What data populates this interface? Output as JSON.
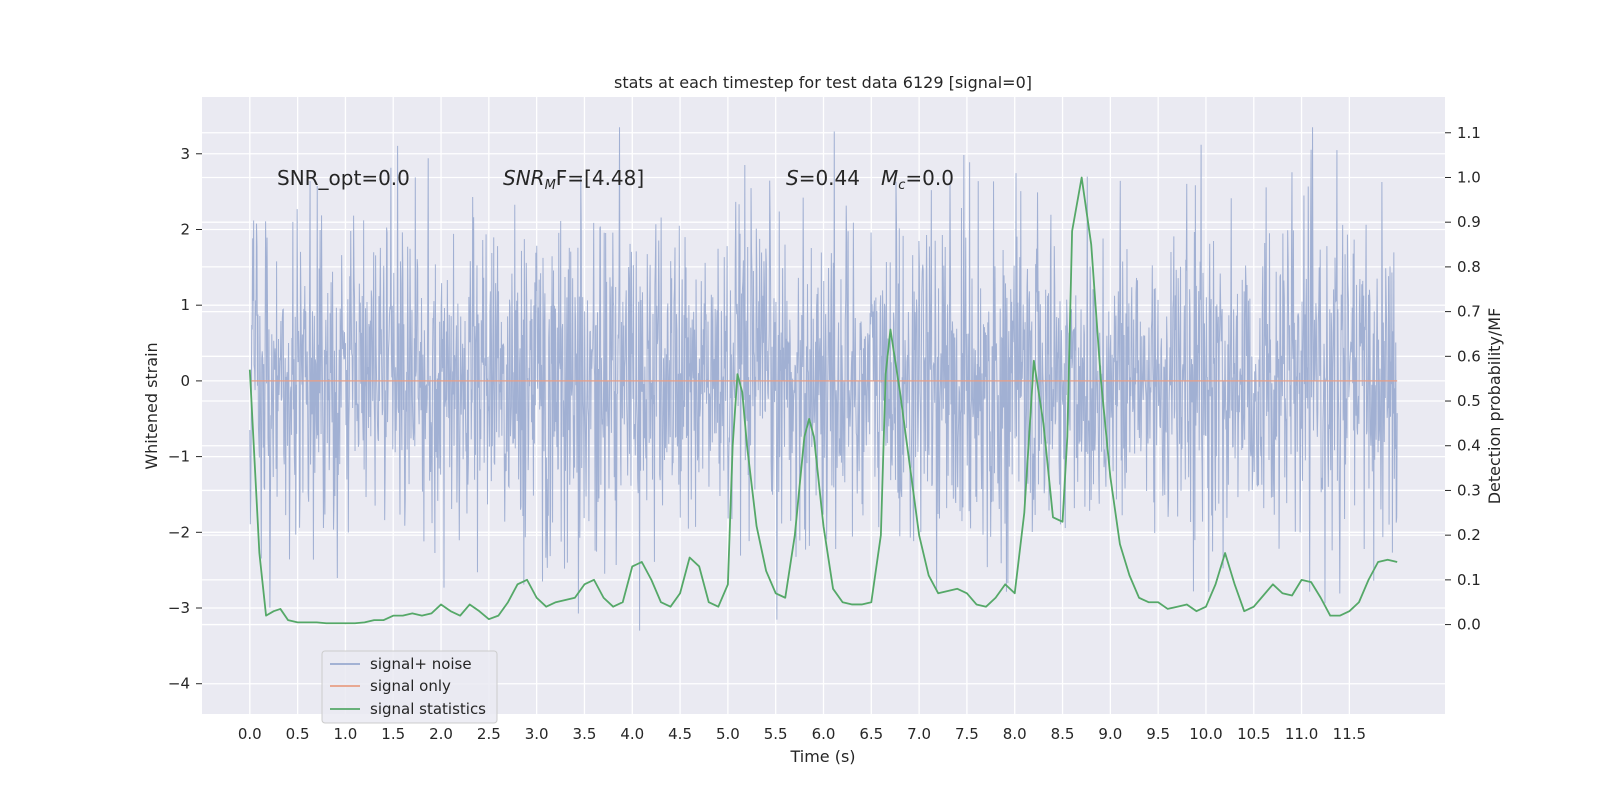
{
  "chart_data": {
    "type": "line",
    "title": "stats at each timestep for test data 6129 [signal=0]",
    "xlabel": "Time (s)",
    "ylabel": "Whitened strain",
    "y2label": "Detection probability/MF",
    "xlim": [
      -0.5,
      12.5
    ],
    "ylim": [
      -4.4,
      3.75
    ],
    "y2lim": [
      -0.2,
      1.18
    ],
    "x_ticks": [
      "0.0",
      "0.5",
      "1.0",
      "1.5",
      "2.0",
      "2.5",
      "3.0",
      "3.5",
      "4.0",
      "4.5",
      "5.0",
      "5.5",
      "6.0",
      "6.5",
      "7.0",
      "7.5",
      "8.0",
      "8.5",
      "9.0",
      "9.5",
      "10.0",
      "10.5",
      "11.0",
      "11.5"
    ],
    "y_ticks": [
      "3",
      "2",
      "1",
      "0",
      "−1",
      "−2",
      "−3",
      "−4"
    ],
    "y2_ticks": [
      "1.1",
      "1.0",
      "0.9",
      "0.8",
      "0.7",
      "0.6",
      "0.5",
      "0.4",
      "0.3",
      "0.2",
      "0.1",
      "0.0"
    ],
    "grid": true,
    "legend_placement": "lower-left",
    "annotations": {
      "snr_opt": "SNR_opt=0.0",
      "snr_mf_italic": "SNR",
      "snr_mf_sub": "M",
      "snr_mf_rest": "F=[4.48]",
      "s_italic": "S",
      "s_rest": "=0.44",
      "mc_italic": "M",
      "mc_sub": "c",
      "mc_rest": "=0.0"
    },
    "series": [
      {
        "name": "signal+ noise",
        "color": "#99aacf",
        "description_values": "dense whitened noise in [-3.7, 3.4], mostly within [-2.5, 2.5]",
        "x_range": [
          0.0,
          12.0
        ],
        "y_range": [
          -3.75,
          3.35
        ]
      },
      {
        "name": "signal only",
        "color": "#e79e85",
        "x": [
          0.0,
          12.0
        ],
        "y": [
          0.0,
          0.0
        ]
      },
      {
        "name": "signal statistics",
        "color": "#55a868",
        "axis": "right",
        "x": [
          0.0,
          0.1,
          0.17,
          0.25,
          0.32,
          0.4,
          0.5,
          0.6,
          0.7,
          0.8,
          0.9,
          1.0,
          1.1,
          1.2,
          1.3,
          1.4,
          1.5,
          1.6,
          1.7,
          1.8,
          1.9,
          2.0,
          2.1,
          2.2,
          2.3,
          2.4,
          2.5,
          2.6,
          2.7,
          2.8,
          2.9,
          3.0,
          3.1,
          3.2,
          3.3,
          3.4,
          3.5,
          3.6,
          3.7,
          3.8,
          3.9,
          4.0,
          4.1,
          4.2,
          4.3,
          4.4,
          4.5,
          4.6,
          4.7,
          4.8,
          4.9,
          5.0,
          5.05,
          5.1,
          5.15,
          5.2,
          5.3,
          5.4,
          5.5,
          5.6,
          5.7,
          5.8,
          5.85,
          5.9,
          6.0,
          6.1,
          6.2,
          6.3,
          6.4,
          6.5,
          6.6,
          6.65,
          6.7,
          6.8,
          6.9,
          7.0,
          7.1,
          7.2,
          7.3,
          7.4,
          7.5,
          7.6,
          7.7,
          7.8,
          7.9,
          8.0,
          8.1,
          8.2,
          8.3,
          8.4,
          8.5,
          8.55,
          8.6,
          8.7,
          8.8,
          8.9,
          9.0,
          9.1,
          9.2,
          9.3,
          9.4,
          9.5,
          9.6,
          9.7,
          9.8,
          9.9,
          10.0,
          10.1,
          10.2,
          10.3,
          10.4,
          10.5,
          10.6,
          10.7,
          10.8,
          10.9,
          11.0,
          11.1,
          11.2,
          11.3,
          11.4,
          11.5,
          11.6,
          11.7,
          11.8,
          11.9,
          12.0
        ],
        "y": [
          0.57,
          0.16,
          0.02,
          0.03,
          0.035,
          0.01,
          0.005,
          0.005,
          0.005,
          0.003,
          0.003,
          0.003,
          0.003,
          0.005,
          0.01,
          0.01,
          0.02,
          0.02,
          0.025,
          0.02,
          0.025,
          0.045,
          0.03,
          0.02,
          0.045,
          0.03,
          0.012,
          0.02,
          0.05,
          0.09,
          0.1,
          0.06,
          0.04,
          0.05,
          0.055,
          0.06,
          0.09,
          0.1,
          0.06,
          0.04,
          0.05,
          0.13,
          0.14,
          0.1,
          0.05,
          0.04,
          0.07,
          0.15,
          0.13,
          0.05,
          0.04,
          0.09,
          0.4,
          0.56,
          0.52,
          0.4,
          0.22,
          0.12,
          0.07,
          0.06,
          0.2,
          0.42,
          0.46,
          0.42,
          0.22,
          0.08,
          0.05,
          0.045,
          0.045,
          0.05,
          0.2,
          0.56,
          0.66,
          0.52,
          0.36,
          0.2,
          0.11,
          0.07,
          0.075,
          0.08,
          0.07,
          0.045,
          0.04,
          0.06,
          0.09,
          0.07,
          0.25,
          0.59,
          0.45,
          0.24,
          0.23,
          0.42,
          0.88,
          1.0,
          0.85,
          0.55,
          0.33,
          0.18,
          0.11,
          0.06,
          0.05,
          0.05,
          0.035,
          0.04,
          0.045,
          0.03,
          0.04,
          0.09,
          0.16,
          0.09,
          0.03,
          0.04,
          0.065,
          0.09,
          0.07,
          0.065,
          0.1,
          0.095,
          0.06,
          0.02,
          0.02,
          0.03,
          0.05,
          0.1,
          0.14,
          0.145,
          0.14
        ]
      }
    ]
  },
  "legend": [
    {
      "label": "signal+ noise",
      "color": "#99aacf"
    },
    {
      "label": "signal only",
      "color": "#e79e85"
    },
    {
      "label": "signal statistics",
      "color": "#55a868"
    }
  ]
}
